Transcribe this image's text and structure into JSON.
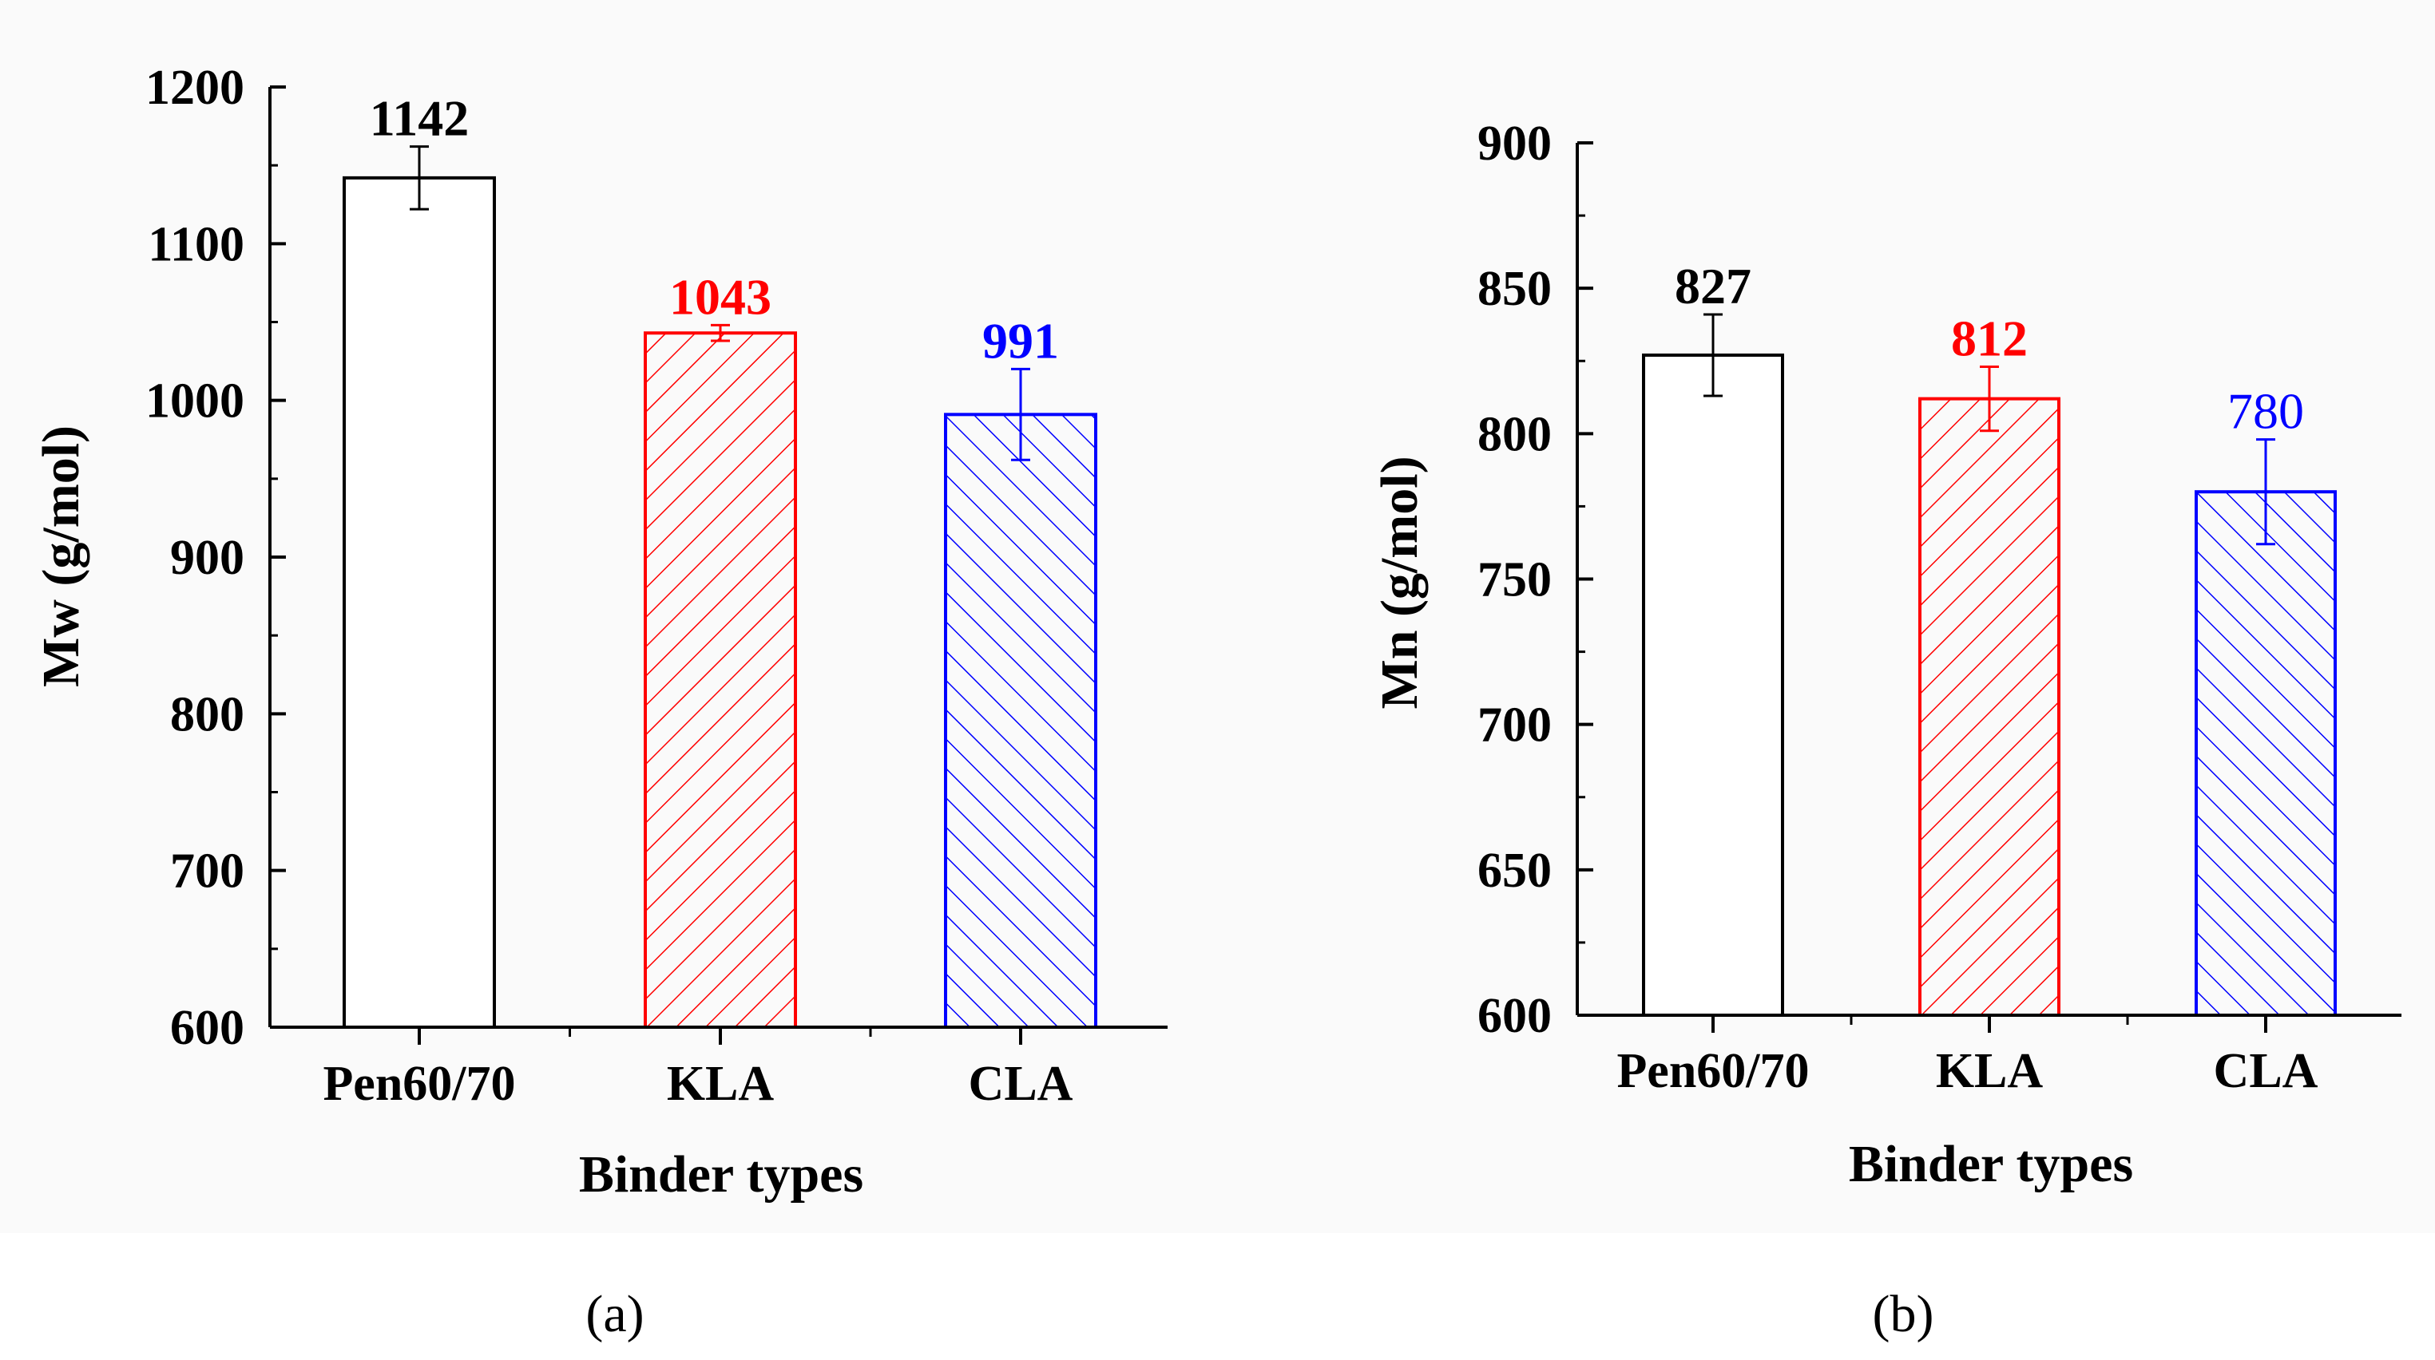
{
  "chart_data": [
    {
      "type": "bar",
      "panel_label": "(a)",
      "categories": [
        "Pen60/70",
        "KLA",
        "CLA"
      ],
      "values": [
        1142,
        1043,
        991
      ],
      "error": [
        20,
        5,
        29
      ],
      "value_labels": [
        "1142",
        "1043",
        "991"
      ],
      "value_label_bold": [
        true,
        true,
        true
      ],
      "colors": [
        "#000000",
        "#ff0000",
        "#0000ff"
      ],
      "patterns": [
        "none",
        "forward-hatch",
        "back-hatch"
      ],
      "xlabel": "Binder types",
      "ylabel": "Mw (g/mol)",
      "ylim": [
        600,
        1200
      ],
      "yticks": [
        600,
        700,
        800,
        900,
        1000,
        1100,
        1200
      ],
      "ytick_labels": [
        "600",
        "700",
        "800",
        "900",
        "1000",
        "1100",
        "1200"
      ],
      "grid": false
    },
    {
      "type": "bar",
      "panel_label": "(b)",
      "categories": [
        "Pen60/70",
        "KLA",
        "CLA"
      ],
      "values": [
        827,
        812,
        780
      ],
      "error": [
        14,
        11,
        18
      ],
      "value_labels": [
        "827",
        "812",
        "780"
      ],
      "value_label_bold": [
        true,
        true,
        false
      ],
      "colors": [
        "#000000",
        "#ff0000",
        "#0000ff"
      ],
      "patterns": [
        "none",
        "forward-hatch",
        "back-hatch"
      ],
      "xlabel": "Binder types",
      "ylabel": "Mn (g/mol)",
      "ylim": [
        600,
        900
      ],
      "yticks": [
        600,
        650,
        700,
        750,
        800,
        850,
        900
      ],
      "ytick_labels": [
        "600",
        "650",
        "700",
        "750",
        "800",
        "850",
        "900"
      ],
      "grid": false
    }
  ]
}
